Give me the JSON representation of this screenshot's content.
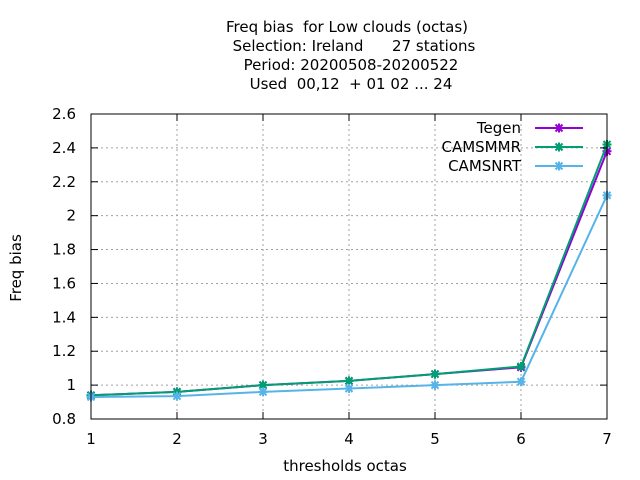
{
  "chart_data": {
    "type": "line",
    "title_lines": [
      "Freq bias  for Low clouds (octas)",
      "Selection: Ireland      27 stations",
      "Period: 20200508-20200522",
      "Used  00,12  + 01 02 ... 24"
    ],
    "xlabel": "thresholds octas",
    "ylabel": "Freq bias",
    "x": [
      1,
      2,
      3,
      4,
      5,
      6,
      7
    ],
    "xlim": [
      1,
      7
    ],
    "ylim": [
      0.8,
      2.6
    ],
    "xticks": [
      "1",
      "2",
      "3",
      "4",
      "5",
      "6",
      "7"
    ],
    "yticks": [
      "0.8",
      "1",
      "1.2",
      "1.4",
      "1.6",
      "1.8",
      "2",
      "2.2",
      "2.4",
      "2.6"
    ],
    "grid": true,
    "legend_position": "top-right",
    "series": [
      {
        "name": "Tegen",
        "color": "#9400d3",
        "values": [
          0.94,
          0.96,
          1.0,
          1.025,
          1.065,
          1.105,
          2.38
        ]
      },
      {
        "name": "CAMSMMR",
        "color": "#009e73",
        "values": [
          0.94,
          0.96,
          1.0,
          1.025,
          1.065,
          1.11,
          2.42
        ]
      },
      {
        "name": "CAMSNRT",
        "color": "#56b4e9",
        "values": [
          0.93,
          0.935,
          0.96,
          0.98,
          1.0,
          1.02,
          2.12
        ]
      }
    ]
  }
}
